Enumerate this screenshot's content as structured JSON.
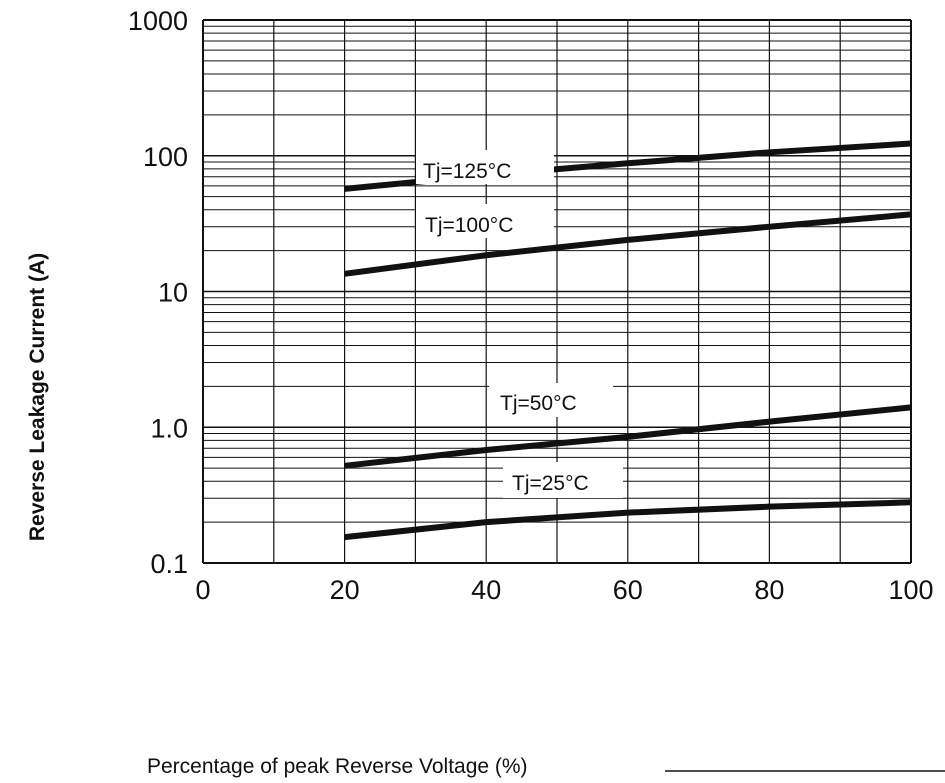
{
  "chart_data": {
    "type": "line",
    "title": "",
    "xlabel": "Percentage of peak Reverse Voltage (%)",
    "ylabel": "Reverse Leakage Current (A)",
    "xlim": [
      0,
      100
    ],
    "ylim": [
      0.1,
      1000
    ],
    "y_scale": "log",
    "grid": true,
    "x_ticks": [
      0,
      20,
      40,
      60,
      80,
      100
    ],
    "x_tick_labels": [
      "0",
      "20",
      "40",
      "60",
      "80",
      "100"
    ],
    "y_ticks": [
      0.1,
      1,
      10,
      100,
      1000
    ],
    "y_tick_labels": [
      "0.1",
      "1.0",
      "10",
      "100",
      "1000"
    ],
    "series": [
      {
        "name": "Tj=125°C",
        "x": [
          20,
          40,
          60,
          80,
          100
        ],
        "y": [
          57,
          72,
          88,
          106,
          123
        ]
      },
      {
        "name": "Tj=100°C",
        "x": [
          20,
          40,
          60,
          80,
          100
        ],
        "y": [
          13.5,
          18.5,
          24,
          30,
          37
        ]
      },
      {
        "name": "Tj=50°C",
        "x": [
          20,
          40,
          60,
          80,
          100
        ],
        "y": [
          0.52,
          0.68,
          0.85,
          1.1,
          1.4
        ]
      },
      {
        "name": "Tj=25°C",
        "x": [
          20,
          40,
          60,
          80,
          100
        ],
        "y": [
          0.155,
          0.2,
          0.235,
          0.26,
          0.28
        ]
      }
    ]
  }
}
